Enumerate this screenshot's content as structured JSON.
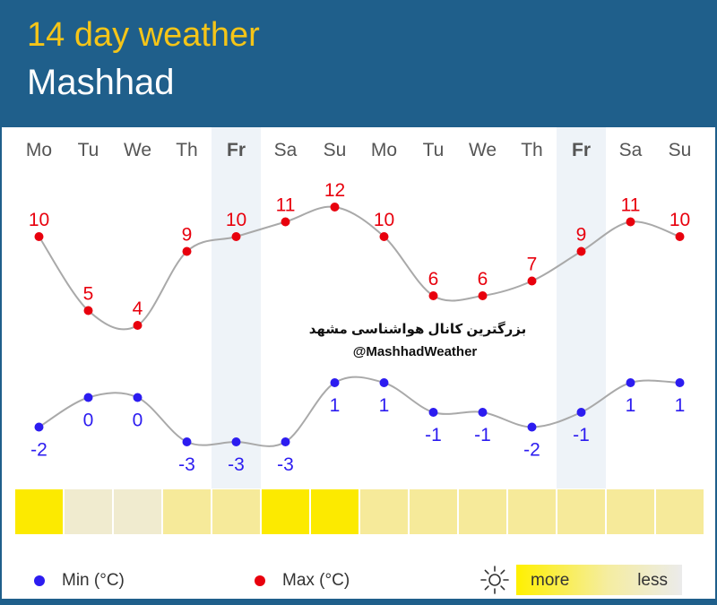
{
  "header": {
    "title": "14 day weather",
    "city": "Mashhad"
  },
  "watermark": {
    "line1": "بزرگترین کانال هواشناسی مشهد",
    "line2": "@MashhadWeather"
  },
  "legend": {
    "min_label": "Min (°C)",
    "max_label": "Max (°C)",
    "more_label": "more",
    "less_label": "less",
    "sun_icon": "sun-icon"
  },
  "colors": {
    "header_bg": "#1f5f8b",
    "title": "#f5c518",
    "max": "#e8000d",
    "min": "#2c1cf0",
    "weekend_band": "#eef3f8",
    "curve": "#a9a9a9"
  },
  "chart_data": {
    "type": "line",
    "categories": [
      "Mo",
      "Tu",
      "We",
      "Th",
      "Fr",
      "Sa",
      "Su",
      "Mo",
      "Tu",
      "We",
      "Th",
      "Fr",
      "Sa",
      "Su"
    ],
    "highlighted_categories": [
      4,
      11
    ],
    "series": [
      {
        "name": "Max (°C)",
        "values": [
          10,
          5,
          4,
          9,
          10,
          11,
          12,
          10,
          6,
          6,
          7,
          9,
          11,
          10
        ]
      },
      {
        "name": "Min (°C)",
        "values": [
          -2,
          0,
          0,
          -3,
          -3,
          -3,
          1,
          1,
          -1,
          -1,
          -2,
          -1,
          1,
          1
        ]
      }
    ],
    "sunshine": {
      "scale": "more → less",
      "levels": [
        1.0,
        0.25,
        0.25,
        0.6,
        0.6,
        1.0,
        1.0,
        0.6,
        0.6,
        0.6,
        0.6,
        0.6,
        0.6,
        0.6
      ]
    },
    "grid": false,
    "legend_position": "bottom"
  }
}
